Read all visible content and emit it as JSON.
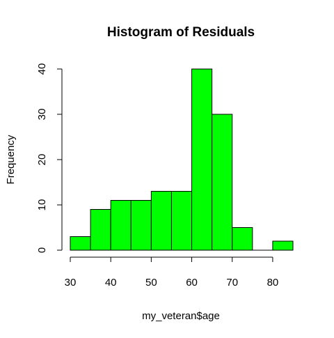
{
  "chart_data": {
    "type": "bar",
    "title": "Histogram of Residuals",
    "xlabel": "my_veteran$age",
    "ylabel": "Frequency",
    "bins": [
      {
        "x0": 30,
        "x1": 35,
        "count": 3
      },
      {
        "x0": 35,
        "x1": 40,
        "count": 9
      },
      {
        "x0": 40,
        "x1": 45,
        "count": 11
      },
      {
        "x0": 45,
        "x1": 50,
        "count": 11
      },
      {
        "x0": 50,
        "x1": 55,
        "count": 13
      },
      {
        "x0": 55,
        "x1": 60,
        "count": 13
      },
      {
        "x0": 60,
        "x1": 65,
        "count": 40
      },
      {
        "x0": 65,
        "x1": 70,
        "count": 30
      },
      {
        "x0": 70,
        "x1": 75,
        "count": 5
      },
      {
        "x0": 75,
        "x1": 80,
        "count": 0
      },
      {
        "x0": 80,
        "x1": 85,
        "count": 2
      }
    ],
    "xticks": [
      30,
      40,
      50,
      60,
      70,
      80
    ],
    "yticks": [
      0,
      10,
      20,
      30,
      40
    ],
    "xlim": [
      30,
      85
    ],
    "ylim": [
      0,
      40
    ],
    "grid": false,
    "bar_fill": "#00ff00",
    "bar_stroke": "#000000"
  }
}
